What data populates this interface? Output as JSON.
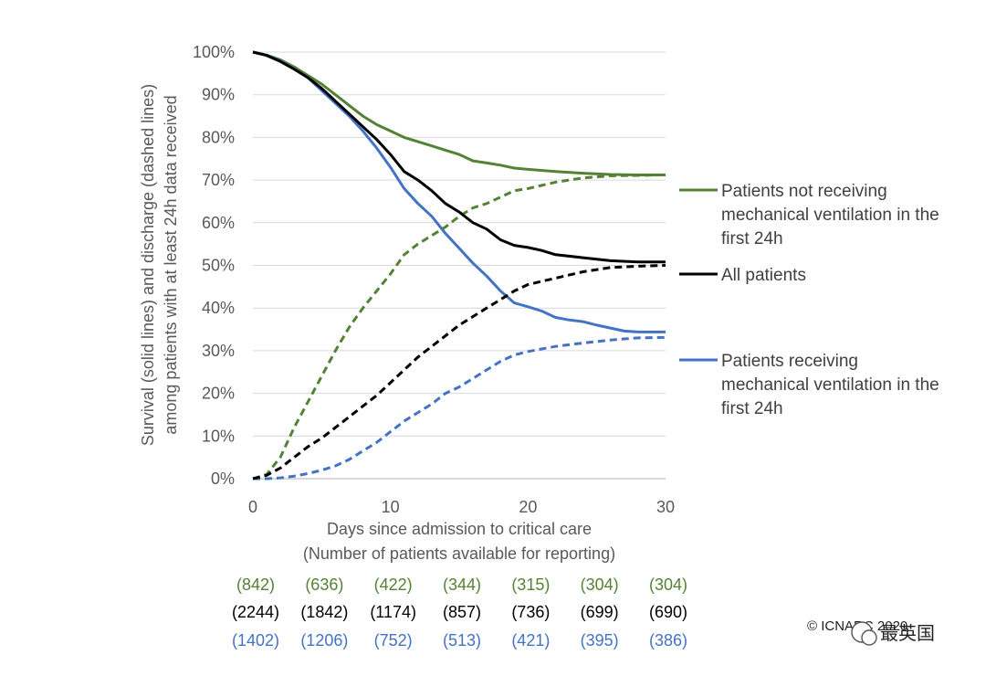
{
  "chart_data": {
    "type": "line",
    "xlabel": "Days since admission to critical care",
    "xlabel_sub": "(Number of patients available for reporting)",
    "ylabel_line1": "Survival (solid lines) and  discharge (dashed lines)",
    "ylabel_line2": "among patients with at least 24h data received",
    "xlim": [
      0,
      30
    ],
    "ylim": [
      0,
      100
    ],
    "x_ticks": [
      "0",
      "10",
      "20",
      "30"
    ],
    "y_ticks": [
      "0%",
      "10%",
      "20%",
      "30%",
      "40%",
      "50%",
      "60%",
      "70%",
      "80%",
      "90%",
      "100%"
    ],
    "grid": "horizontal",
    "legend_position": "right",
    "series": [
      {
        "key": "not_mv",
        "name_lines": [
          "Patients not receiving",
          "mechanical ventilation in the",
          "first 24h"
        ],
        "color": "#548235",
        "survival": [
          [
            0,
            100
          ],
          [
            1,
            99.3
          ],
          [
            2,
            98
          ],
          [
            3,
            96.5
          ],
          [
            4,
            94.5
          ],
          [
            5,
            92.5
          ],
          [
            6,
            90
          ],
          [
            7,
            87.5
          ],
          [
            8,
            85
          ],
          [
            9,
            83
          ],
          [
            10,
            81.5
          ],
          [
            11,
            80
          ],
          [
            12,
            79
          ],
          [
            13,
            78
          ],
          [
            14,
            77
          ],
          [
            15,
            76
          ],
          [
            16,
            74.5
          ],
          [
            17,
            74
          ],
          [
            18,
            73.5
          ],
          [
            19,
            72.8
          ],
          [
            20,
            72.5
          ],
          [
            22,
            72
          ],
          [
            24,
            71.6
          ],
          [
            26,
            71.3
          ],
          [
            28,
            71.2
          ],
          [
            30,
            71.2
          ]
        ],
        "discharge": [
          [
            0,
            0
          ],
          [
            1,
            1
          ],
          [
            2,
            5
          ],
          [
            3,
            12
          ],
          [
            4,
            18
          ],
          [
            5,
            24
          ],
          [
            6,
            30
          ],
          [
            7,
            35.5
          ],
          [
            8,
            40
          ],
          [
            9,
            44
          ],
          [
            10,
            48
          ],
          [
            11,
            52.5
          ],
          [
            12,
            55
          ],
          [
            13,
            57
          ],
          [
            14,
            59
          ],
          [
            15,
            61.5
          ],
          [
            16,
            63.5
          ],
          [
            17,
            64.5
          ],
          [
            18,
            66
          ],
          [
            19,
            67.5
          ],
          [
            20,
            68
          ],
          [
            22,
            69.5
          ],
          [
            24,
            70.5
          ],
          [
            26,
            71
          ],
          [
            28,
            71.1
          ],
          [
            30,
            71.2
          ]
        ]
      },
      {
        "key": "all",
        "name_lines": [
          "All patients"
        ],
        "color": "#000000",
        "survival": [
          [
            0,
            100
          ],
          [
            1,
            99.2
          ],
          [
            2,
            97.8
          ],
          [
            3,
            96
          ],
          [
            4,
            94
          ],
          [
            5,
            91.5
          ],
          [
            6,
            88.5
          ],
          [
            7,
            85.5
          ],
          [
            8,
            82.5
          ],
          [
            9,
            79.5
          ],
          [
            10,
            76
          ],
          [
            11,
            72
          ],
          [
            12,
            70
          ],
          [
            13,
            67.5
          ],
          [
            14,
            64.5
          ],
          [
            15,
            62.5
          ],
          [
            16,
            60
          ],
          [
            17,
            58.5
          ],
          [
            18,
            56
          ],
          [
            19,
            54.7
          ],
          [
            20,
            54.2
          ],
          [
            21,
            53.5
          ],
          [
            22,
            52.5
          ],
          [
            24,
            51.8
          ],
          [
            26,
            51.1
          ],
          [
            28,
            50.8
          ],
          [
            30,
            50.8
          ]
        ],
        "discharge": [
          [
            0,
            0
          ],
          [
            1,
            0.8
          ],
          [
            2,
            2.5
          ],
          [
            3,
            5
          ],
          [
            4,
            7.5
          ],
          [
            5,
            9.5
          ],
          [
            6,
            12
          ],
          [
            7,
            14.5
          ],
          [
            8,
            17
          ],
          [
            9,
            19.5
          ],
          [
            10,
            22.5
          ],
          [
            11,
            25.5
          ],
          [
            12,
            28.5
          ],
          [
            13,
            31
          ],
          [
            14,
            33.5
          ],
          [
            15,
            36
          ],
          [
            16,
            38
          ],
          [
            17,
            40
          ],
          [
            18,
            42
          ],
          [
            19,
            44
          ],
          [
            20,
            45.5
          ],
          [
            22,
            47
          ],
          [
            24,
            48.5
          ],
          [
            26,
            49.5
          ],
          [
            28,
            49.8
          ],
          [
            30,
            50
          ]
        ]
      },
      {
        "key": "mv",
        "name_lines": [
          "Patients receiving",
          "mechanical ventilation in the",
          "first 24h"
        ],
        "color": "#4472C4",
        "survival": [
          [
            0,
            100
          ],
          [
            1,
            99.3
          ],
          [
            2,
            98.2
          ],
          [
            3,
            96.5
          ],
          [
            4,
            94
          ],
          [
            5,
            91
          ],
          [
            6,
            88
          ],
          [
            7,
            85
          ],
          [
            8,
            81.5
          ],
          [
            9,
            77.5
          ],
          [
            10,
            73
          ],
          [
            11,
            68
          ],
          [
            12,
            64.5
          ],
          [
            13,
            61.5
          ],
          [
            14,
            57.5
          ],
          [
            15,
            54
          ],
          [
            16,
            50.5
          ],
          [
            17,
            47.5
          ],
          [
            18,
            44
          ],
          [
            19,
            41.2
          ],
          [
            20,
            40.3
          ],
          [
            21,
            39.3
          ],
          [
            22,
            37.8
          ],
          [
            23,
            37.2
          ],
          [
            24,
            36.8
          ],
          [
            25,
            36
          ],
          [
            26,
            35.3
          ],
          [
            27,
            34.6
          ],
          [
            28,
            34.4
          ],
          [
            30,
            34.4
          ]
        ],
        "discharge": [
          [
            0,
            0
          ],
          [
            1,
            0
          ],
          [
            2,
            0.2
          ],
          [
            3,
            0.6
          ],
          [
            4,
            1.2
          ],
          [
            5,
            2
          ],
          [
            6,
            3
          ],
          [
            7,
            4.5
          ],
          [
            8,
            6.5
          ],
          [
            9,
            8.5
          ],
          [
            10,
            11
          ],
          [
            11,
            13.5
          ],
          [
            12,
            15.5
          ],
          [
            13,
            17.5
          ],
          [
            14,
            20
          ],
          [
            15,
            21.5
          ],
          [
            16,
            23.5
          ],
          [
            17,
            25.5
          ],
          [
            18,
            27.5
          ],
          [
            19,
            29
          ],
          [
            20,
            29.8
          ],
          [
            22,
            31
          ],
          [
            24,
            31.8
          ],
          [
            26,
            32.5
          ],
          [
            28,
            33
          ],
          [
            30,
            33.1
          ]
        ]
      }
    ],
    "counts": {
      "not_mv": [
        "(842)",
        "(636)",
        "(422)",
        "(344)",
        "(315)",
        "(304)",
        "(304)"
      ],
      "all": [
        "(2244)",
        "(1842)",
        "(1174)",
        "(857)",
        "(736)",
        "(699)",
        "(690)"
      ],
      "mv": [
        "(1402)",
        "(1206)",
        "(752)",
        "(513)",
        "(421)",
        "(395)",
        "(386)"
      ]
    }
  },
  "copyright": "© ICNARC 2020",
  "watermark": "最英国"
}
